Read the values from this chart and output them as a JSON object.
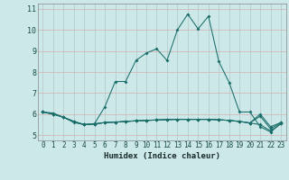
{
  "xlabel": "Humidex (Indice chaleur)",
  "background_color": "#cce8e8",
  "grid_color": "#b8d4d4",
  "line_color": "#1a6e6a",
  "xlim": [
    -0.5,
    23.5
  ],
  "ylim": [
    4.75,
    11.25
  ],
  "xticks": [
    0,
    1,
    2,
    3,
    4,
    5,
    6,
    7,
    8,
    9,
    10,
    11,
    12,
    13,
    14,
    15,
    16,
    17,
    18,
    19,
    20,
    21,
    22,
    23
  ],
  "yticks": [
    5,
    6,
    7,
    8,
    9,
    10,
    11
  ],
  "series": [
    {
      "x": [
        0,
        1,
        2,
        3,
        4,
        5,
        6,
        7,
        8,
        9,
        10,
        11,
        12,
        13,
        14,
        15,
        16,
        17,
        18,
        19,
        20,
        21,
        22,
        23
      ],
      "y": [
        6.1,
        6.0,
        5.85,
        5.6,
        5.5,
        5.55,
        6.35,
        7.55,
        7.55,
        8.55,
        8.9,
        9.1,
        8.55,
        10.0,
        10.75,
        10.05,
        10.65,
        8.5,
        7.5,
        6.1,
        6.1,
        5.4,
        5.15,
        5.55
      ]
    },
    {
      "x": [
        0,
        1,
        2,
        3,
        4,
        5,
        6,
        7,
        8,
        9,
        10,
        11,
        12,
        13,
        14,
        15,
        16,
        17,
        18,
        19,
        20,
        21,
        22,
        23
      ],
      "y": [
        6.1,
        6.05,
        5.85,
        5.65,
        5.5,
        5.53,
        5.6,
        5.62,
        5.65,
        5.68,
        5.7,
        5.72,
        5.74,
        5.75,
        5.75,
        5.75,
        5.75,
        5.73,
        5.7,
        5.65,
        5.58,
        5.5,
        5.2,
        5.55
      ]
    },
    {
      "x": [
        0,
        1,
        2,
        3,
        4,
        5,
        6,
        7,
        8,
        9,
        10,
        11,
        12,
        13,
        14,
        15,
        16,
        17,
        18,
        19,
        20,
        21,
        22,
        23
      ],
      "y": [
        6.1,
        6.0,
        5.85,
        5.65,
        5.5,
        5.53,
        5.6,
        5.62,
        5.65,
        5.68,
        5.7,
        5.72,
        5.74,
        5.75,
        5.75,
        5.75,
        5.75,
        5.73,
        5.7,
        5.65,
        5.58,
        5.9,
        5.3,
        5.6
      ]
    },
    {
      "x": [
        0,
        1,
        2,
        3,
        4,
        5,
        6,
        7,
        8,
        9,
        10,
        11,
        12,
        13,
        14,
        15,
        16,
        17,
        18,
        19,
        20,
        21,
        22,
        23
      ],
      "y": [
        6.1,
        6.0,
        5.85,
        5.65,
        5.5,
        5.53,
        5.6,
        5.62,
        5.65,
        5.68,
        5.7,
        5.72,
        5.74,
        5.75,
        5.75,
        5.75,
        5.75,
        5.73,
        5.7,
        5.65,
        5.58,
        6.0,
        5.4,
        5.6
      ]
    }
  ],
  "marker": "D",
  "markersize": 2.0,
  "linewidth": 0.75
}
